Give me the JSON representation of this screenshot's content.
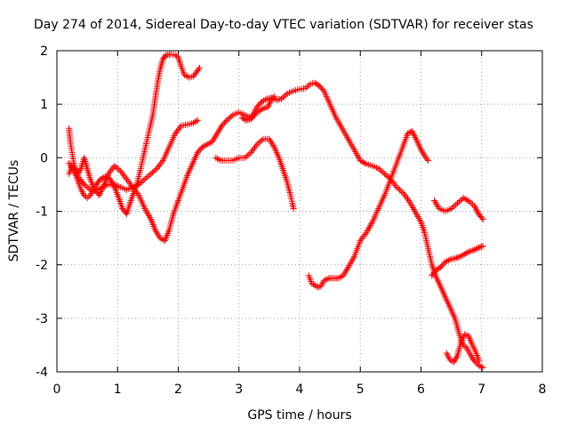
{
  "chart_data": {
    "type": "scatter",
    "title": "Day 274 of 2014, Sidereal Day-to-day VTEC variation (SDTVAR) for receiver stas",
    "xlabel": "GPS time / hours",
    "ylabel": "SDTVAR / TECUs",
    "xlim": [
      0,
      8
    ],
    "ylim": [
      -4,
      2
    ],
    "xticks": [
      "0",
      "1",
      "2",
      "3",
      "4",
      "5",
      "6",
      "7",
      "8"
    ],
    "yticks": [
      "-4",
      "-3",
      "-2",
      "-1",
      "0",
      "1",
      "2"
    ],
    "grid": true,
    "marker": "+",
    "color": "#ff0000",
    "series": [
      {
        "points": [
          [
            0.2,
            0.55
          ],
          [
            0.22,
            0.3
          ],
          [
            0.25,
            0.1
          ],
          [
            0.28,
            -0.1
          ],
          [
            0.32,
            -0.3
          ],
          [
            0.38,
            -0.4
          ],
          [
            0.45,
            -0.5
          ],
          [
            0.55,
            -0.6
          ],
          [
            0.65,
            -0.6
          ],
          [
            0.75,
            -0.55
          ],
          [
            0.85,
            -0.5
          ],
          [
            0.95,
            -0.5
          ],
          [
            1.05,
            -0.55
          ],
          [
            1.15,
            -0.6
          ],
          [
            1.25,
            -0.55
          ],
          [
            1.35,
            -0.5
          ],
          [
            1.45,
            -0.4
          ],
          [
            1.55,
            -0.3
          ],
          [
            1.65,
            -0.2
          ],
          [
            1.75,
            -0.05
          ],
          [
            1.85,
            0.2
          ],
          [
            1.95,
            0.45
          ],
          [
            2.05,
            0.6
          ],
          [
            2.15,
            0.62
          ],
          [
            2.25,
            0.65
          ],
          [
            2.32,
            0.7
          ]
        ]
      },
      {
        "points": [
          [
            0.2,
            -0.1
          ],
          [
            0.25,
            -0.2
          ],
          [
            0.3,
            -0.3
          ],
          [
            0.35,
            -0.45
          ],
          [
            0.4,
            -0.6
          ],
          [
            0.45,
            -0.7
          ],
          [
            0.5,
            -0.75
          ],
          [
            0.55,
            -0.7
          ],
          [
            0.6,
            -0.6
          ],
          [
            0.65,
            -0.5
          ],
          [
            0.72,
            -0.4
          ],
          [
            0.8,
            -0.35
          ],
          [
            0.88,
            -0.4
          ],
          [
            0.95,
            -0.55
          ],
          [
            1.02,
            -0.75
          ],
          [
            1.08,
            -0.95
          ],
          [
            1.15,
            -1.05
          ],
          [
            1.22,
            -0.8
          ],
          [
            1.28,
            -0.6
          ],
          [
            1.32,
            -0.5
          ],
          [
            1.38,
            -0.2
          ],
          [
            1.42,
            0.0
          ],
          [
            1.48,
            0.3
          ],
          [
            1.52,
            0.5
          ],
          [
            1.58,
            0.8
          ],
          [
            1.62,
            1.1
          ],
          [
            1.66,
            1.4
          ],
          [
            1.7,
            1.65
          ],
          [
            1.75,
            1.85
          ],
          [
            1.8,
            1.92
          ],
          [
            1.88,
            1.93
          ],
          [
            1.95,
            1.92
          ],
          [
            2.0,
            1.88
          ],
          [
            2.05,
            1.7
          ],
          [
            2.1,
            1.55
          ],
          [
            2.18,
            1.5
          ],
          [
            2.25,
            1.52
          ],
          [
            2.3,
            1.6
          ],
          [
            2.35,
            1.68
          ]
        ]
      },
      {
        "points": [
          [
            0.2,
            -0.3
          ],
          [
            0.25,
            -0.15
          ],
          [
            0.3,
            -0.2
          ],
          [
            0.35,
            -0.3
          ],
          [
            0.4,
            -0.2
          ],
          [
            0.45,
            0.0
          ],
          [
            0.5,
            -0.2
          ],
          [
            0.55,
            -0.4
          ],
          [
            0.62,
            -0.6
          ],
          [
            0.7,
            -0.7
          ],
          [
            0.78,
            -0.5
          ],
          [
            0.85,
            -0.3
          ],
          [
            0.95,
            -0.15
          ],
          [
            1.05,
            -0.25
          ],
          [
            1.15,
            -0.4
          ],
          [
            1.25,
            -0.55
          ],
          [
            1.35,
            -0.7
          ],
          [
            1.45,
            -0.95
          ],
          [
            1.55,
            -1.15
          ],
          [
            1.62,
            -1.35
          ],
          [
            1.7,
            -1.5
          ],
          [
            1.78,
            -1.55
          ],
          [
            1.85,
            -1.35
          ],
          [
            1.92,
            -1.05
          ],
          [
            2.0,
            -0.8
          ],
          [
            2.08,
            -0.55
          ],
          [
            2.16,
            -0.3
          ],
          [
            2.24,
            -0.1
          ],
          [
            2.32,
            0.1
          ],
          [
            2.4,
            0.2
          ],
          [
            2.48,
            0.25
          ],
          [
            2.56,
            0.3
          ],
          [
            2.64,
            0.45
          ],
          [
            2.72,
            0.6
          ],
          [
            2.8,
            0.7
          ],
          [
            2.9,
            0.8
          ],
          [
            3.0,
            0.85
          ],
          [
            3.1,
            0.8
          ],
          [
            3.2,
            0.75
          ],
          [
            3.3,
            0.95
          ],
          [
            3.38,
            1.05
          ],
          [
            3.46,
            1.1
          ],
          [
            3.54,
            1.12
          ],
          [
            3.62,
            1.08
          ],
          [
            3.7,
            1.1
          ],
          [
            3.8,
            1.2
          ],
          [
            3.9,
            1.25
          ],
          [
            4.0,
            1.28
          ],
          [
            4.1,
            1.3
          ],
          [
            4.18,
            1.38
          ],
          [
            4.25,
            1.4
          ],
          [
            4.32,
            1.35
          ],
          [
            4.4,
            1.25
          ],
          [
            4.5,
            1.0
          ],
          [
            4.6,
            0.75
          ],
          [
            4.7,
            0.55
          ],
          [
            4.8,
            0.35
          ],
          [
            4.9,
            0.15
          ],
          [
            5.0,
            -0.05
          ],
          [
            5.1,
            -0.12
          ],
          [
            5.2,
            -0.15
          ],
          [
            5.3,
            -0.2
          ],
          [
            5.4,
            -0.3
          ],
          [
            5.5,
            -0.4
          ],
          [
            5.6,
            -0.55
          ],
          [
            5.7,
            -0.65
          ],
          [
            5.8,
            -0.8
          ],
          [
            5.9,
            -1.0
          ],
          [
            6.0,
            -1.2
          ],
          [
            6.06,
            -1.4
          ],
          [
            6.12,
            -1.7
          ],
          [
            6.18,
            -2.0
          ],
          [
            6.24,
            -2.2
          ],
          [
            6.32,
            -2.4
          ],
          [
            6.4,
            -2.6
          ],
          [
            6.48,
            -2.8
          ],
          [
            6.56,
            -3.0
          ],
          [
            6.62,
            -3.25
          ],
          [
            6.66,
            -3.4
          ],
          [
            6.7,
            -3.5
          ],
          [
            6.75,
            -3.55
          ],
          [
            6.8,
            -3.65
          ],
          [
            6.85,
            -3.75
          ],
          [
            6.9,
            -3.82
          ],
          [
            6.95,
            -3.88
          ],
          [
            7.02,
            -3.92
          ]
        ]
      },
      {
        "points": [
          [
            3.05,
            0.75
          ],
          [
            3.12,
            0.7
          ],
          [
            3.2,
            0.72
          ],
          [
            3.3,
            0.85
          ],
          [
            3.4,
            0.92
          ],
          [
            3.48,
            0.95
          ],
          [
            3.52,
            1.05
          ],
          [
            3.58,
            1.15
          ]
        ]
      },
      {
        "points": [
          [
            2.62,
            0.0
          ],
          [
            2.7,
            -0.05
          ],
          [
            2.8,
            -0.05
          ],
          [
            2.9,
            -0.05
          ],
          [
            3.0,
            0.0
          ],
          [
            3.1,
            0.0
          ],
          [
            3.2,
            0.1
          ],
          [
            3.3,
            0.25
          ],
          [
            3.4,
            0.35
          ],
          [
            3.5,
            0.35
          ],
          [
            3.58,
            0.2
          ],
          [
            3.66,
            0.0
          ],
          [
            3.72,
            -0.2
          ],
          [
            3.78,
            -0.4
          ],
          [
            3.84,
            -0.65
          ],
          [
            3.88,
            -0.85
          ],
          [
            3.9,
            -0.95
          ]
        ]
      },
      {
        "points": [
          [
            4.15,
            -2.2
          ],
          [
            4.2,
            -2.35
          ],
          [
            4.25,
            -2.38
          ],
          [
            4.3,
            -2.42
          ],
          [
            4.35,
            -2.4
          ],
          [
            4.4,
            -2.3
          ],
          [
            4.48,
            -2.25
          ],
          [
            4.56,
            -2.25
          ],
          [
            4.64,
            -2.25
          ],
          [
            4.72,
            -2.2
          ],
          [
            4.8,
            -2.05
          ],
          [
            4.9,
            -1.85
          ],
          [
            5.0,
            -1.55
          ],
          [
            5.1,
            -1.4
          ],
          [
            5.2,
            -1.2
          ],
          [
            5.3,
            -0.95
          ],
          [
            5.4,
            -0.7
          ],
          [
            5.5,
            -0.4
          ],
          [
            5.6,
            -0.1
          ],
          [
            5.7,
            0.2
          ],
          [
            5.78,
            0.45
          ],
          [
            5.85,
            0.5
          ],
          [
            5.92,
            0.35
          ],
          [
            6.0,
            0.15
          ],
          [
            6.08,
            0.0
          ],
          [
            6.12,
            -0.05
          ]
        ]
      },
      {
        "points": [
          [
            6.22,
            -0.8
          ],
          [
            6.3,
            -0.95
          ],
          [
            6.4,
            -1.0
          ],
          [
            6.5,
            -0.95
          ],
          [
            6.6,
            -0.85
          ],
          [
            6.7,
            -0.75
          ],
          [
            6.8,
            -0.82
          ],
          [
            6.88,
            -0.9
          ],
          [
            6.95,
            -1.05
          ],
          [
            7.02,
            -1.15
          ]
        ]
      },
      {
        "points": [
          [
            6.18,
            -2.2
          ],
          [
            6.25,
            -2.1
          ],
          [
            6.32,
            -2.05
          ],
          [
            6.4,
            -1.95
          ],
          [
            6.48,
            -1.9
          ],
          [
            6.56,
            -1.88
          ],
          [
            6.64,
            -1.85
          ],
          [
            6.72,
            -1.8
          ],
          [
            6.8,
            -1.75
          ],
          [
            6.88,
            -1.72
          ],
          [
            6.95,
            -1.68
          ],
          [
            7.02,
            -1.65
          ]
        ]
      },
      {
        "points": [
          [
            6.42,
            -3.65
          ],
          [
            6.48,
            -3.78
          ],
          [
            6.54,
            -3.82
          ],
          [
            6.6,
            -3.7
          ],
          [
            6.66,
            -3.45
          ],
          [
            6.72,
            -3.3
          ],
          [
            6.78,
            -3.32
          ],
          [
            6.84,
            -3.48
          ],
          [
            6.9,
            -3.62
          ],
          [
            6.96,
            -3.8
          ]
        ]
      }
    ]
  }
}
